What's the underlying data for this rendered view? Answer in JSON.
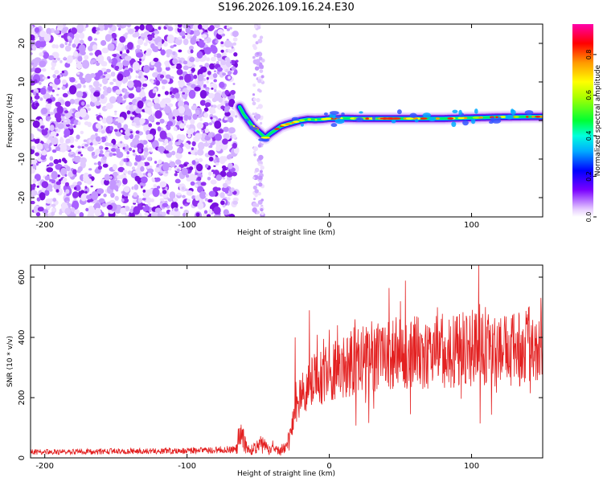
{
  "title": "S196.2026.109.16.24.E30",
  "colors": {
    "signal": "#e32020",
    "axis": "#000000"
  },
  "chart_data": [
    {
      "type": "heatmap",
      "title": "S196.2026.109.16.24.E30",
      "xlabel": "Height of straight line (km)",
      "ylabel": "Frequency (Hz)",
      "xlim": [
        -210,
        150
      ],
      "ylim": [
        -25,
        25
      ],
      "xticks": [
        -200,
        -100,
        0,
        100
      ],
      "xtick_labels": [
        "-200",
        "-100",
        "0",
        "100"
      ],
      "yticks": [
        -20,
        -10,
        0,
        10,
        20
      ],
      "ytick_labels": [
        "-20",
        "-10",
        "0",
        "10",
        "20"
      ],
      "ridge": {
        "x": [
          -63,
          -60,
          -57,
          -54,
          -51,
          -48,
          -45,
          -42,
          -38,
          -34,
          -30,
          -25,
          -20,
          -15,
          -10,
          -5,
          0,
          5,
          10,
          20,
          40,
          60,
          80,
          100,
          120,
          150
        ],
        "y": [
          3.5,
          1.5,
          0.0,
          -1.5,
          -2.5,
          -3.5,
          -4.5,
          -3.5,
          -2.5,
          -1.5,
          -1.0,
          -0.5,
          0.0,
          0.3,
          0.2,
          0.3,
          0.5,
          0.5,
          0.6,
          0.5,
          0.5,
          0.5,
          0.5,
          0.7,
          0.9,
          1.0
        ]
      },
      "colorbar": {
        "label": "Normalized spectral amplitude",
        "range": [
          0,
          0.95
        ],
        "ticks": [
          0.0,
          0.2,
          0.4,
          0.6,
          0.8
        ],
        "tick_labels": [
          "0.0",
          "0.2",
          "0.4",
          "0.6",
          "0.8"
        ]
      }
    },
    {
      "type": "line",
      "xlabel": "Height of straight line (km)",
      "ylabel": "SNR (10 * v/v)",
      "xlim": [
        -210,
        150
      ],
      "ylim": [
        0,
        640
      ],
      "xticks": [
        -200,
        -100,
        0,
        100
      ],
      "xtick_labels": [
        "-200",
        "-100",
        "0",
        "100"
      ],
      "yticks": [
        0,
        200,
        400,
        600
      ],
      "ytick_labels": [
        "0",
        "200",
        "400",
        "600"
      ],
      "series": [
        {
          "name": "SNR",
          "x": [
            -210,
            -180,
            -150,
            -120,
            -90,
            -66,
            -64,
            -62,
            -60,
            -56,
            -52,
            -48,
            -44,
            -40,
            -36,
            -30,
            -27,
            -25,
            -20,
            -15,
            -10,
            0,
            10,
            20,
            40,
            60,
            80,
            100,
            120,
            150
          ],
          "y": [
            20,
            20,
            22,
            22,
            25,
            28,
            60,
            95,
            55,
            25,
            30,
            50,
            30,
            35,
            25,
            30,
            80,
            150,
            210,
            240,
            260,
            280,
            300,
            330,
            345,
            350,
            355,
            360,
            355,
            360
          ],
          "spikes": [
            [
              -24,
              400
            ],
            [
              -14,
              490
            ],
            [
              -4,
              395
            ],
            [
              18,
              460
            ],
            [
              34,
              430
            ],
            [
              50,
              520
            ],
            [
              60,
              470
            ],
            [
              76,
              500
            ],
            [
              90,
              470
            ],
            [
              105,
              640
            ],
            [
              110,
              250
            ],
            [
              140,
              500
            ],
            [
              150,
              480
            ]
          ]
        }
      ]
    }
  ]
}
